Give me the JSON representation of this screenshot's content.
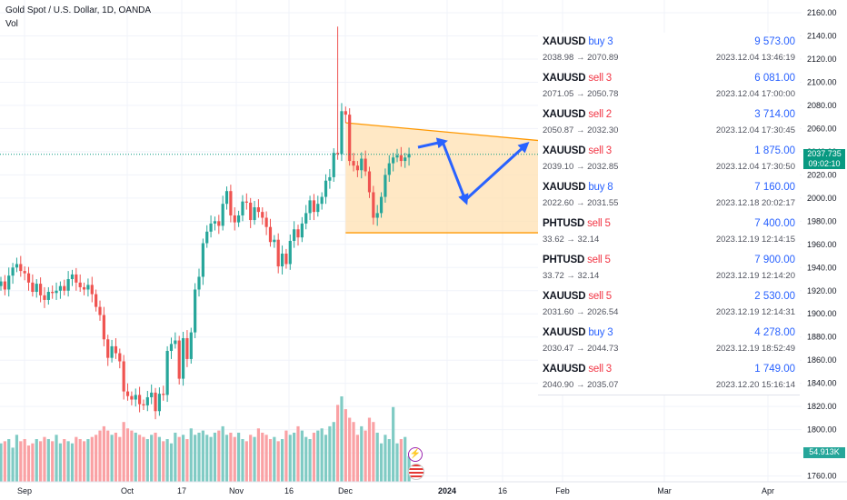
{
  "header": {
    "title": "Gold Spot / U.S. Dollar, 1D, OANDA",
    "volume_label": "Vol"
  },
  "current_price": {
    "value": "2037.735",
    "countdown": "09:02:10",
    "color": "#089981"
  },
  "volume_last": {
    "value": "54.913K",
    "color": "#26a69a"
  },
  "colors": {
    "up": "#26a69a",
    "down": "#ef5350",
    "triangle_fill": "#ffe0b2",
    "triangle_line": "#ff9800",
    "arrow": "#2962ff"
  },
  "chart_data": {
    "type": "candlestick",
    "title": "Gold Spot / U.S. Dollar, 1D, OANDA",
    "y_ticks": [
      1760,
      1780,
      1800,
      1820,
      1840,
      1860,
      1880,
      1900,
      1920,
      1940,
      1960,
      1980,
      2000,
      2020,
      2040,
      2060,
      2080,
      2100,
      2120,
      2140,
      2160
    ],
    "x_ticks": [
      "Sep",
      "Oct",
      "17",
      "Nov",
      "16",
      "Dec",
      "2024",
      "16",
      "Feb",
      "Mar",
      "Apr"
    ],
    "ylim": [
      1752,
      2168
    ],
    "close_prices": [
      1928,
      1921,
      1933,
      1940,
      1943,
      1937,
      1935,
      1927,
      1919,
      1926,
      1916,
      1912,
      1919,
      1918,
      1920,
      1924,
      1920,
      1930,
      1934,
      1927,
      1923,
      1921,
      1925,
      1917,
      1906,
      1899,
      1878,
      1862,
      1872,
      1866,
      1859,
      1833,
      1829,
      1826,
      1830,
      1822,
      1821,
      1828,
      1832,
      1816,
      1831,
      1830,
      1868,
      1874,
      1877,
      1844,
      1879,
      1861,
      1884,
      1921,
      1932,
      1961,
      1971,
      1978,
      1980,
      1976,
      1995,
      2006,
      1985,
      1979,
      1985,
      1997,
      1996,
      1981,
      1992,
      1988,
      1983,
      1975,
      1962,
      1964,
      1941,
      1952,
      1943,
      1963,
      1973,
      1966,
      1978,
      1987,
      1998,
      1988,
      1995,
      2001,
      2015,
      2018,
      2039,
      2038,
      2075,
      2072,
      2032,
      2028,
      2024,
      2034,
      2023,
      2005,
      1983,
      1987,
      2001,
      2020,
      2030,
      2035,
      2037,
      2032,
      2035,
      2038
    ],
    "volume": [
      90,
      95,
      100,
      80,
      110,
      95,
      100,
      85,
      90,
      100,
      95,
      105,
      100,
      95,
      110,
      90,
      100,
      95,
      90,
      105,
      100,
      95,
      100,
      105,
      110,
      120,
      130,
      120,
      110,
      115,
      105,
      140,
      125,
      120,
      115,
      110,
      105,
      100,
      110,
      115,
      105,
      95,
      100,
      90,
      115,
      105,
      110,
      100,
      125,
      110,
      115,
      120,
      110,
      105,
      115,
      120,
      130,
      110,
      115,
      105,
      115,
      100,
      95,
      110,
      105,
      125,
      115,
      110,
      100,
      105,
      95,
      100,
      120,
      110,
      115,
      130,
      120,
      105,
      100,
      115,
      120,
      125,
      110,
      130,
      140,
      180,
      200,
      170,
      150,
      140,
      110,
      130,
      120,
      150,
      140,
      115,
      90,
      110,
      100,
      175,
      90,
      100,
      105,
      60
    ],
    "annotations": {
      "triangle": {
        "start_index": 87,
        "end_index": 141,
        "upper": [
          2065,
          2048
        ],
        "lower": [
          1970,
          1970
        ]
      }
    }
  },
  "trades": [
    {
      "symbol": "XAUUSD",
      "side": "buy",
      "qty": "3",
      "pnl": "9 573.00",
      "range": "2038.98 → 2070.89",
      "time": "2023.12.04 13:46:19"
    },
    {
      "symbol": "XAUUSD",
      "side": "sell",
      "qty": "3",
      "pnl": "6 081.00",
      "range": "2071.05 → 2050.78",
      "time": "2023.12.04 17:00:00"
    },
    {
      "symbol": "XAUUSD",
      "side": "sell",
      "qty": "2",
      "pnl": "3 714.00",
      "range": "2050.87 → 2032.30",
      "time": "2023.12.04 17:30:45"
    },
    {
      "symbol": "XAUUSD",
      "side": "sell",
      "qty": "3",
      "pnl": "1 875.00",
      "range": "2039.10 → 2032.85",
      "time": "2023.12.04 17:30:50"
    },
    {
      "symbol": "XAUUSD",
      "side": "buy",
      "qty": "8",
      "pnl": "7 160.00",
      "range": "2022.60 → 2031.55",
      "time": "2023.12.18 20:02:17"
    },
    {
      "symbol": "PHTUSD",
      "side": "sell",
      "qty": "5",
      "pnl": "7 400.00",
      "range": "33.62 → 32.14",
      "time": "2023.12.19 12:14:15"
    },
    {
      "symbol": "PHTUSD",
      "side": "sell",
      "qty": "5",
      "pnl": "7 900.00",
      "range": "33.72 → 32.14",
      "time": "2023.12.19 12:14:20"
    },
    {
      "symbol": "XAUUSD",
      "side": "sell",
      "qty": "5",
      "pnl": "2 530.00",
      "range": "2031.60 → 2026.54",
      "time": "2023.12.19 12:14:31"
    },
    {
      "symbol": "XAUUSD",
      "side": "buy",
      "qty": "3",
      "pnl": "4 278.00",
      "range": "2030.47 → 2044.73",
      "time": "2023.12.19 18:52:49"
    },
    {
      "symbol": "XAUUSD",
      "side": "sell",
      "qty": "3",
      "pnl": "1 749.00",
      "range": "2040.90 → 2035.07",
      "time": "2023.12.20 15:16:14"
    }
  ]
}
